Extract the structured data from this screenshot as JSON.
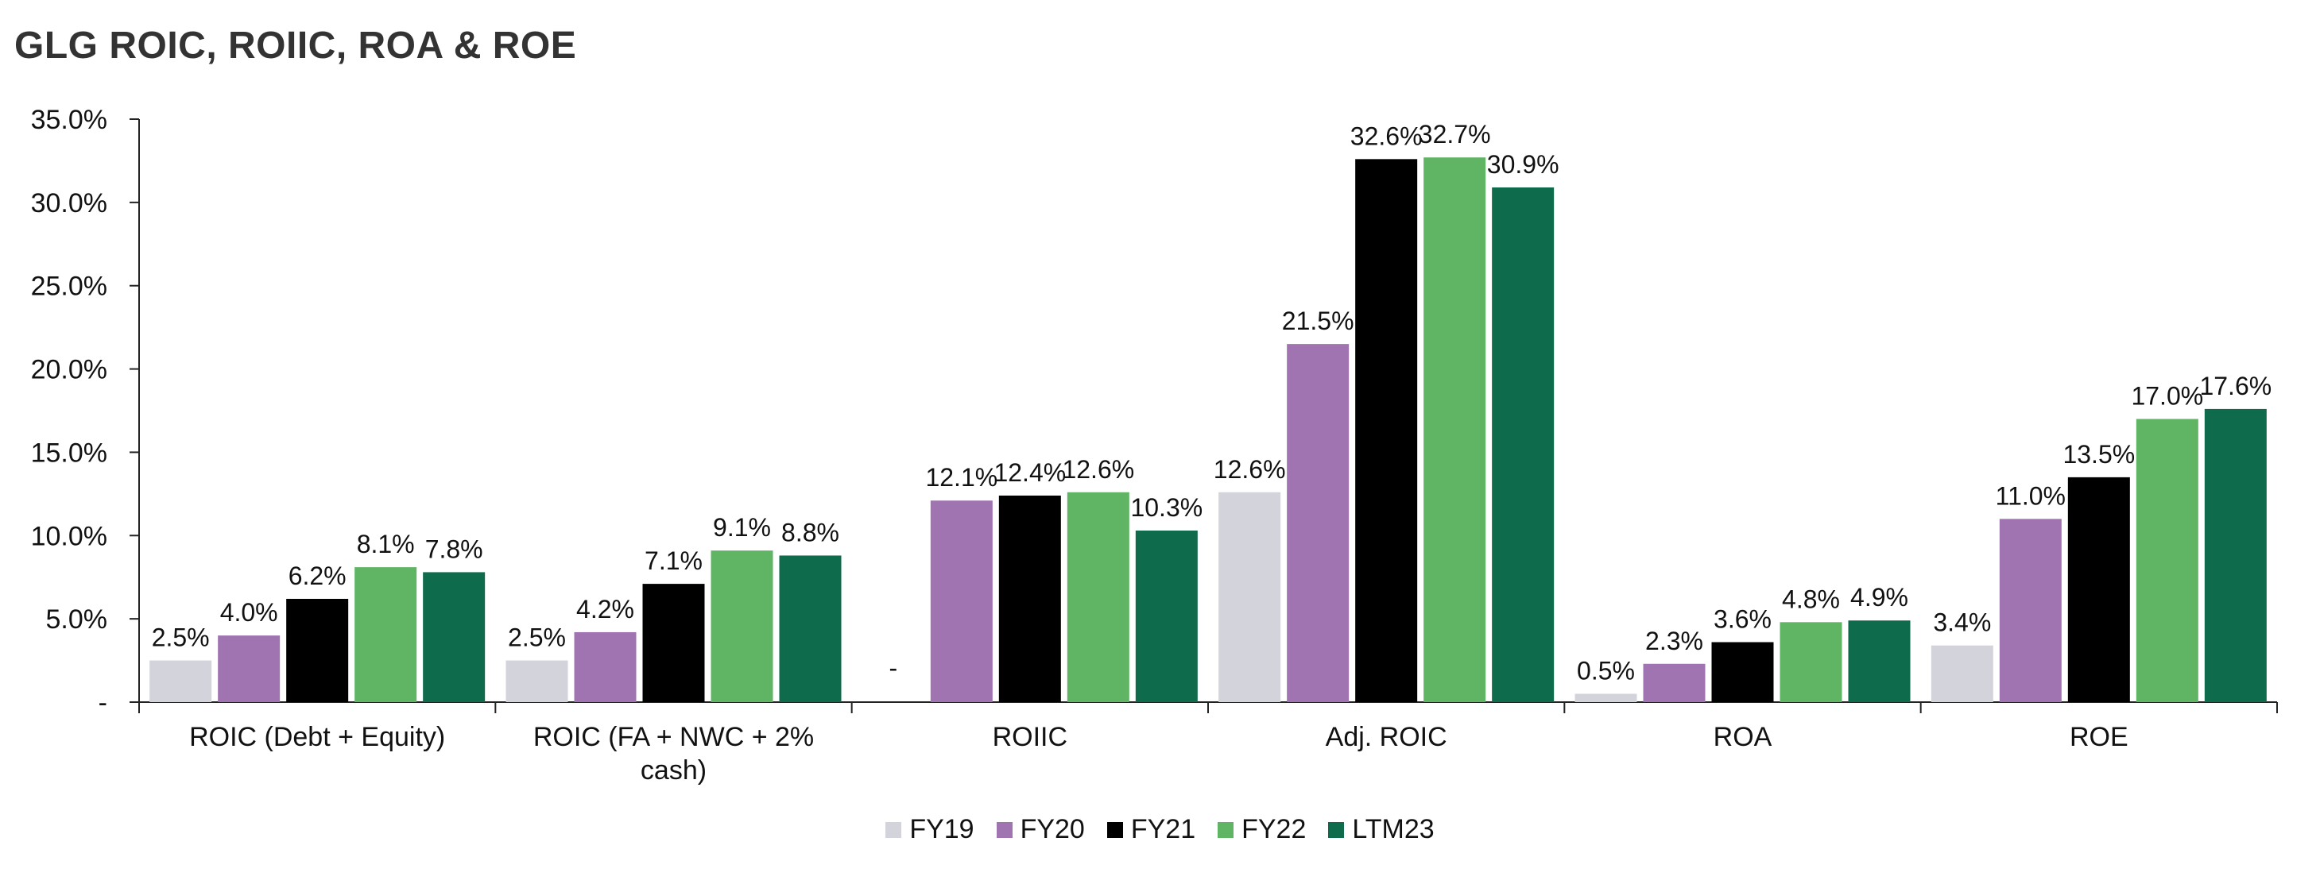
{
  "chart_data": {
    "type": "bar",
    "title": "GLG ROIC, ROIIC, ROA & ROE",
    "categories": [
      "ROIC (Debt + Equity)",
      "ROIC (FA + NWC + 2%\ncash)",
      "ROIIC",
      "Adj. ROIC",
      "ROA",
      "ROE"
    ],
    "series": [
      {
        "name": "FY19",
        "color": "#d3d3dc",
        "values": [
          2.5,
          2.5,
          null,
          12.6,
          0.5,
          3.4
        ],
        "labels": [
          "2.5%",
          "2.5%",
          "-",
          "12.6%",
          "0.5%",
          "3.4%"
        ]
      },
      {
        "name": "FY20",
        "color": "#a074b1",
        "values": [
          4.0,
          4.2,
          12.1,
          21.5,
          2.3,
          11.0
        ],
        "labels": [
          "4.0%",
          "4.2%",
          "12.1%",
          "21.5%",
          "2.3%",
          "11.0%"
        ]
      },
      {
        "name": "FY21",
        "color": "#000000",
        "values": [
          6.2,
          7.1,
          12.4,
          32.6,
          3.6,
          13.5
        ],
        "labels": [
          "6.2%",
          "7.1%",
          "12.4%",
          "32.6%",
          "3.6%",
          "13.5%"
        ]
      },
      {
        "name": "FY22",
        "color": "#5fb564",
        "values": [
          8.1,
          9.1,
          12.6,
          32.7,
          4.8,
          17.0
        ],
        "labels": [
          "8.1%",
          "9.1%",
          "12.6%",
          "32.7%",
          "4.8%",
          "17.0%"
        ]
      },
      {
        "name": "LTM23",
        "color": "#0e6b4c",
        "values": [
          7.8,
          8.8,
          10.3,
          30.9,
          4.9,
          17.6
        ],
        "labels": [
          "7.8%",
          "8.8%",
          "10.3%",
          "30.9%",
          "4.9%",
          "17.6%"
        ]
      }
    ],
    "ylim": [
      0,
      35
    ],
    "yticks": [
      "-",
      "5.0%",
      "10.0%",
      "15.0%",
      "20.0%",
      "25.0%",
      "30.0%",
      "35.0%"
    ],
    "grid": false,
    "legend_position": "bottom"
  }
}
